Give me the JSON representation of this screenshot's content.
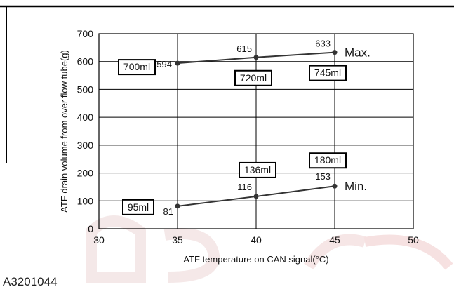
{
  "figure_id": "A3201044",
  "colors": {
    "line": "#333333",
    "grid": "#000000",
    "frame": "#000000",
    "watermark": "#e8d4d4"
  },
  "chart_data": {
    "type": "line",
    "title": "",
    "xlabel": "ATF temperature on CAN signal(°C)",
    "ylabel": "ATF drain volume from over flow tube(g)",
    "xlim": [
      30,
      50
    ],
    "ylim": [
      0,
      700
    ],
    "x_ticks": [
      "30",
      "35",
      "40",
      "45",
      "50"
    ],
    "y_ticks": [
      "0",
      "100",
      "200",
      "300",
      "400",
      "500",
      "600",
      "700"
    ],
    "grid": true,
    "series": [
      {
        "name": "Max.",
        "x": [
          35,
          40,
          45
        ],
        "y": [
          594,
          615,
          633
        ],
        "point_labels": [
          "594",
          "615",
          "633"
        ],
        "volume_labels": [
          "700ml",
          "720ml",
          "745ml"
        ]
      },
      {
        "name": "Min.",
        "x": [
          35,
          40,
          45
        ],
        "y": [
          81,
          116,
          153
        ],
        "point_labels": [
          "81",
          "116",
          "153"
        ],
        "volume_labels": [
          "95ml",
          "136ml",
          "180ml"
        ]
      }
    ]
  }
}
